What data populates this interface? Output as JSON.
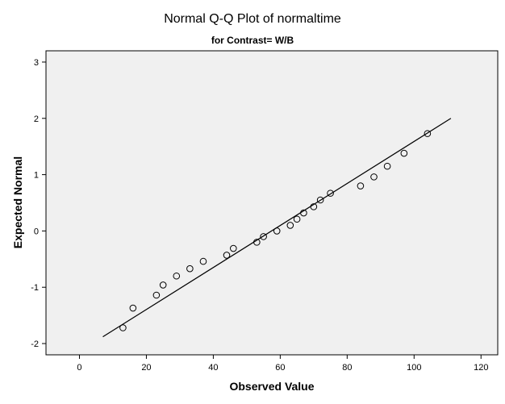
{
  "chart_data": {
    "type": "scatter",
    "title": "Normal Q-Q Plot of normaltime",
    "subtitle": "for Contrast= W/B",
    "xlabel": "Observed Value",
    "ylabel": "Expected Normal",
    "xlim": [
      -10,
      125
    ],
    "ylim": [
      -2.2,
      3.2
    ],
    "xticks": [
      0,
      20,
      40,
      60,
      80,
      100,
      120
    ],
    "yticks": [
      -2,
      -1,
      0,
      1,
      2,
      3
    ],
    "grid": false,
    "points": [
      {
        "x": 13,
        "y": -1.72
      },
      {
        "x": 16,
        "y": -1.37
      },
      {
        "x": 23,
        "y": -1.14
      },
      {
        "x": 25,
        "y": -0.96
      },
      {
        "x": 29,
        "y": -0.8
      },
      {
        "x": 33,
        "y": -0.67
      },
      {
        "x": 37,
        "y": -0.54
      },
      {
        "x": 44,
        "y": -0.43
      },
      {
        "x": 46,
        "y": -0.31
      },
      {
        "x": 53,
        "y": -0.2
      },
      {
        "x": 55,
        "y": -0.1
      },
      {
        "x": 59,
        "y": 0.0
      },
      {
        "x": 63,
        "y": 0.1
      },
      {
        "x": 65,
        "y": 0.21
      },
      {
        "x": 67,
        "y": 0.32
      },
      {
        "x": 70,
        "y": 0.43
      },
      {
        "x": 72,
        "y": 0.55
      },
      {
        "x": 75,
        "y": 0.67
      },
      {
        "x": 84,
        "y": 0.8
      },
      {
        "x": 88,
        "y": 0.96
      },
      {
        "x": 92,
        "y": 1.15
      },
      {
        "x": 97,
        "y": 1.38
      },
      {
        "x": 104,
        "y": 1.73
      }
    ],
    "reference_line": {
      "x1": 7,
      "y1": -1.88,
      "x2": 111,
      "y2": 2.0
    }
  }
}
